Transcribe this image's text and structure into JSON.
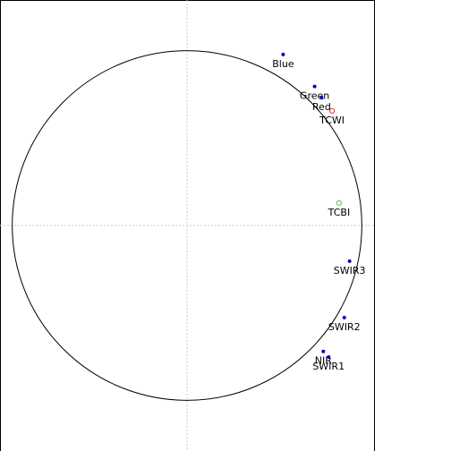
{
  "chart_data": {
    "type": "scatter",
    "title": "",
    "xlabel": "",
    "ylabel": "",
    "xlim": [
      -1.07,
      1.07
    ],
    "ylim": [
      -1.2,
      1.2
    ],
    "grid": false,
    "reference_lines": {
      "x": 0,
      "y": 0
    },
    "circle": {
      "center": [
        0,
        0
      ],
      "radius": 1.0
    },
    "points": [
      {
        "label": "Blue",
        "x": 0.55,
        "y": 0.91,
        "marker": "filled",
        "color": "#0000cc"
      },
      {
        "label": "Green",
        "x": 0.73,
        "y": 0.74,
        "marker": "filled",
        "color": "#0000cc"
      },
      {
        "label": "Red",
        "x": 0.77,
        "y": 0.68,
        "marker": "filled",
        "color": "#0000cc"
      },
      {
        "label": "TCWI",
        "x": 0.83,
        "y": 0.61,
        "marker": "open",
        "color": "#e03030"
      },
      {
        "label": "TCBI",
        "x": 0.87,
        "y": 0.12,
        "marker": "open",
        "color": "#44cc44"
      },
      {
        "label": "SWIR3",
        "x": 0.93,
        "y": -0.19,
        "marker": "filled",
        "color": "#0000cc"
      },
      {
        "label": "SWIR2",
        "x": 0.9,
        "y": -0.49,
        "marker": "filled",
        "color": "#0000cc"
      },
      {
        "label": "NIR",
        "x": 0.78,
        "y": -0.67,
        "marker": "filled",
        "color": "#0000cc"
      },
      {
        "label": "SWIR1",
        "x": 0.81,
        "y": -0.7,
        "marker": "filled",
        "color": "#0000cc"
      }
    ]
  }
}
